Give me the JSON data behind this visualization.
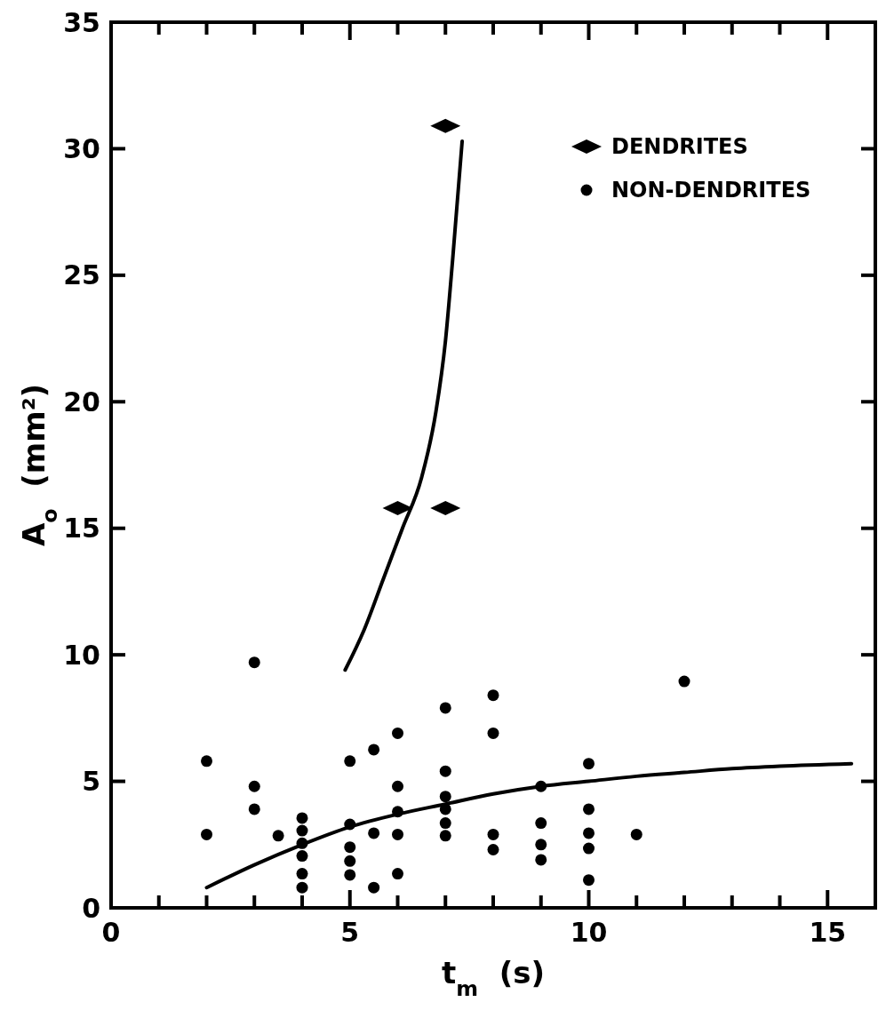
{
  "chart_data": {
    "type": "scatter",
    "xlabel": "t$_{m}$  (s)",
    "ylabel": "A$_{o}$  (mm²)",
    "xlim": [
      0,
      16
    ],
    "ylim": [
      0,
      35
    ],
    "xticks": [
      0,
      {
        "value": 1,
        "label": null
      },
      {
        "value": 2,
        "label": null
      },
      {
        "value": 3,
        "label": null
      },
      {
        "value": 4,
        "label": null
      },
      5,
      {
        "value": 6,
        "label": null
      },
      {
        "value": 7,
        "label": null
      },
      {
        "value": 8,
        "label": null
      },
      {
        "value": 9,
        "label": null
      },
      10,
      {
        "value": 11,
        "label": null
      },
      {
        "value": 12,
        "label": null
      },
      {
        "value": 13,
        "label": null
      },
      {
        "value": 14,
        "label": null
      },
      15,
      {
        "value": 16,
        "label": null
      }
    ],
    "yticks": [
      0,
      5,
      10,
      15,
      20,
      25,
      30,
      35
    ],
    "grid": false,
    "legend": "top right",
    "series": [
      {
        "name": "DENDRITES",
        "marker": "diamond",
        "color": "#000000",
        "x": [
          6,
          7,
          7
        ],
        "values": [
          15.8,
          15.8,
          30.9
        ]
      },
      {
        "name": "NON-DENDRITES",
        "marker": "circle",
        "color": "#000000",
        "x": [
          2,
          2,
          3,
          3,
          3,
          3.5,
          4,
          4,
          4,
          4,
          4,
          4,
          5,
          5,
          5,
          5,
          5,
          5.5,
          5.5,
          5.5,
          6,
          6,
          6,
          6,
          6,
          7,
          7,
          7,
          7,
          7,
          7,
          8,
          8,
          8,
          8,
          9,
          9,
          9,
          9,
          10,
          10,
          10,
          10,
          10,
          11,
          12
        ],
        "values": [
          5.8,
          2.9,
          9.7,
          4.8,
          3.9,
          2.85,
          3.55,
          3.05,
          2.55,
          2.05,
          1.35,
          0.8,
          5.8,
          3.3,
          2.4,
          1.85,
          1.3,
          6.25,
          2.95,
          0.8,
          6.9,
          4.8,
          3.8,
          2.9,
          1.35,
          7.9,
          5.4,
          4.4,
          3.9,
          3.35,
          2.85,
          8.4,
          6.9,
          2.9,
          2.3,
          4.8,
          3.35,
          2.5,
          1.9,
          5.7,
          3.9,
          2.95,
          2.35,
          1.1,
          2.9,
          8.95
        ]
      },
      {
        "type": "line",
        "color": "#000000",
        "marker": "none",
        "x": [
          2,
          3,
          4,
          5,
          6,
          7,
          8,
          9,
          10,
          11,
          12,
          13,
          14,
          15.5
        ],
        "values": [
          0.8,
          1.7,
          2.5,
          3.2,
          3.7,
          4.1,
          4.5,
          4.8,
          5.0,
          5.2,
          5.35,
          5.5,
          5.6,
          5.7
        ]
      },
      {
        "type": "line",
        "color": "#000000",
        "marker": "none",
        "x": [
          4.9,
          5.3,
          5.7,
          6.1,
          6.5,
          6.8,
          7.0,
          7.15,
          7.35
        ],
        "values": [
          9.4,
          11,
          13,
          15,
          17,
          19.6,
          22.4,
          25.6,
          30.3
        ]
      }
    ]
  }
}
